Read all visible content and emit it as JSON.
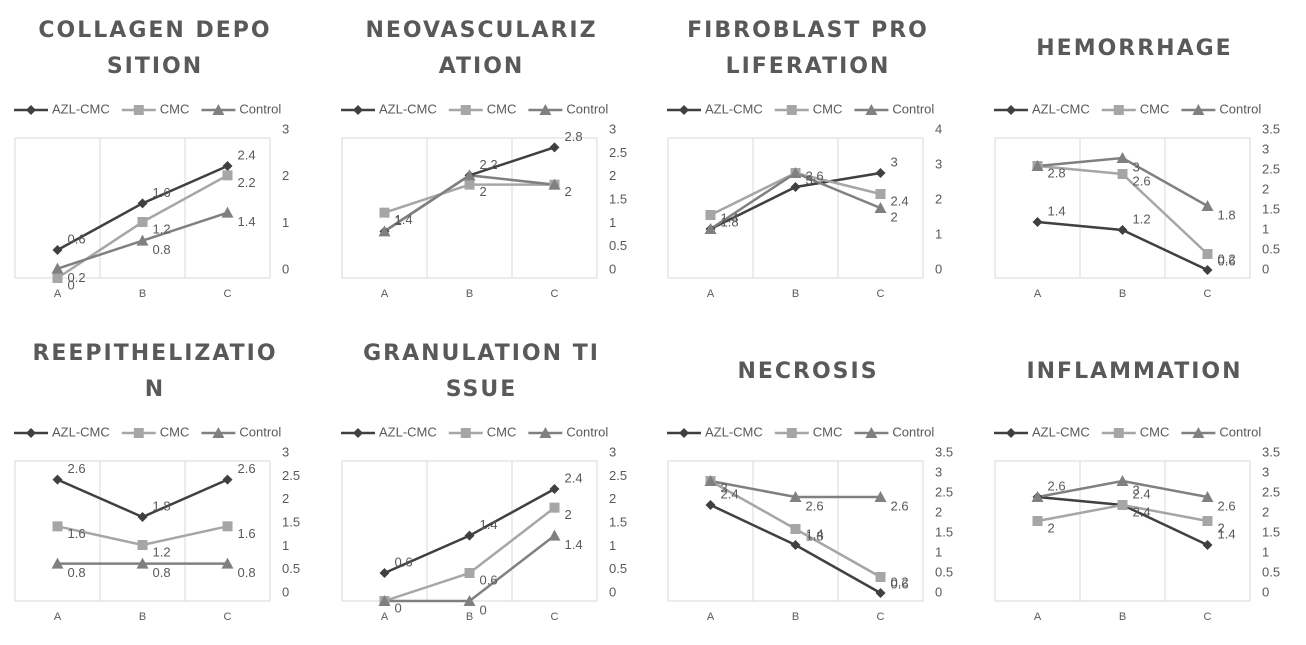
{
  "chart_data": [
    {
      "type": "line",
      "title": "COLLAGEN DEPOSITION",
      "categories": [
        "A",
        "B",
        "C"
      ],
      "ylim": [
        0,
        3
      ],
      "yticks": [
        0,
        1,
        2,
        3
      ],
      "series": [
        {
          "name": "AZL-CMC",
          "color": "#404040",
          "marker": "diamond",
          "values": [
            0.6,
            1.6,
            2.4
          ],
          "value_labels": [
            "0.6",
            "1.6",
            "2.4"
          ]
        },
        {
          "name": "CMC",
          "color": "#a6a6a6",
          "marker": "square",
          "values": [
            0,
            1.2,
            2.2
          ],
          "value_labels": [
            "0",
            "1.2",
            "2.2"
          ]
        },
        {
          "name": "Control",
          "color": "#808080",
          "marker": "triangle",
          "values": [
            0.2,
            0.8,
            1.4
          ],
          "value_labels": [
            "0.2",
            "0.8",
            "1.4"
          ]
        }
      ]
    },
    {
      "type": "line",
      "title": "NEOVASCULARIZATION",
      "categories": [
        "A",
        "B",
        "C"
      ],
      "ylim": [
        0,
        3
      ],
      "yticks": [
        0,
        0.5,
        1,
        1.5,
        2,
        2.5,
        3
      ],
      "series": [
        {
          "name": "AZL-CMC",
          "color": "#404040",
          "marker": "diamond",
          "values": [
            1,
            2.2,
            2.8
          ],
          "value_labels": [
            "1",
            "2.2",
            "2.8"
          ]
        },
        {
          "name": "CMC",
          "color": "#a6a6a6",
          "marker": "square",
          "values": [
            1.4,
            2,
            2
          ],
          "value_labels": [
            "1.4",
            "2",
            "2"
          ]
        },
        {
          "name": "Control",
          "color": "#808080",
          "marker": "triangle",
          "values": [
            1,
            2.2,
            2
          ],
          "value_labels": [
            null,
            null,
            null
          ]
        }
      ]
    },
    {
      "type": "line",
      "title": "FIBROBLAST PROLIFERATION",
      "categories": [
        "A",
        "B",
        "C"
      ],
      "ylim": [
        0,
        4
      ],
      "yticks": [
        0,
        1,
        2,
        3,
        4
      ],
      "series": [
        {
          "name": "AZL-CMC",
          "color": "#404040",
          "marker": "diamond",
          "values": [
            1.4,
            2.6,
            3
          ],
          "value_labels": [
            "1.4",
            "2.6",
            "3"
          ]
        },
        {
          "name": "CMC",
          "color": "#a6a6a6",
          "marker": "square",
          "values": [
            1.8,
            3,
            2.4
          ],
          "value_labels": [
            "1.8",
            "3",
            "2.4"
          ]
        },
        {
          "name": "Control",
          "color": "#808080",
          "marker": "triangle",
          "values": [
            1.4,
            3,
            2
          ],
          "value_labels": [
            null,
            null,
            "2"
          ]
        }
      ]
    },
    {
      "type": "line",
      "title": "HEMORRHAGE",
      "categories": [
        "A",
        "B",
        "C"
      ],
      "ylim": [
        0,
        3.5
      ],
      "yticks": [
        0,
        0.5,
        1,
        1.5,
        2,
        2.5,
        3,
        3.5
      ],
      "series": [
        {
          "name": "AZL-CMC",
          "color": "#404040",
          "marker": "diamond",
          "values": [
            1.4,
            1.2,
            0.2
          ],
          "value_labels": [
            "1.4",
            "1.2",
            "0.2"
          ]
        },
        {
          "name": "CMC",
          "color": "#a6a6a6",
          "marker": "square",
          "values": [
            2.8,
            2.6,
            0.6
          ],
          "value_labels": [
            "2.8",
            "2.6",
            "0.6"
          ]
        },
        {
          "name": "Control",
          "color": "#808080",
          "marker": "triangle",
          "values": [
            2.8,
            3,
            1.8
          ],
          "value_labels": [
            null,
            "3",
            "1.8"
          ]
        }
      ]
    },
    {
      "type": "line",
      "title": "REEPITHELIZATION",
      "categories": [
        "A",
        "B",
        "C"
      ],
      "ylim": [
        0,
        3
      ],
      "yticks": [
        0,
        0.5,
        1,
        1.5,
        2,
        2.5,
        3
      ],
      "series": [
        {
          "name": "AZL-CMC",
          "color": "#404040",
          "marker": "diamond",
          "values": [
            2.6,
            1.8,
            2.6
          ],
          "value_labels": [
            "2.6",
            "1.8",
            "2.6"
          ]
        },
        {
          "name": "CMC",
          "color": "#a6a6a6",
          "marker": "square",
          "values": [
            1.6,
            1.2,
            1.6
          ],
          "value_labels": [
            "1.6",
            "1.2",
            "1.6"
          ]
        },
        {
          "name": "Control",
          "color": "#808080",
          "marker": "triangle",
          "values": [
            0.8,
            0.8,
            0.8
          ],
          "value_labels": [
            "0.8",
            "0.8",
            "0.8"
          ]
        }
      ]
    },
    {
      "type": "line",
      "title": "GRANULATION TISSUE",
      "categories": [
        "A",
        "B",
        "C"
      ],
      "ylim": [
        0,
        3
      ],
      "yticks": [
        0,
        0.5,
        1,
        1.5,
        2,
        2.5,
        3
      ],
      "series": [
        {
          "name": "AZL-CMC",
          "color": "#404040",
          "marker": "diamond",
          "values": [
            0.6,
            1.4,
            2.4
          ],
          "value_labels": [
            "0.6",
            "1.4",
            "2.4"
          ]
        },
        {
          "name": "CMC",
          "color": "#a6a6a6",
          "marker": "square",
          "values": [
            0,
            0.6,
            2
          ],
          "value_labels": [
            "0",
            "0.6",
            "2"
          ]
        },
        {
          "name": "Control",
          "color": "#808080",
          "marker": "triangle",
          "values": [
            0,
            0,
            1.4
          ],
          "value_labels": [
            null,
            "0",
            "1.4"
          ]
        }
      ]
    },
    {
      "type": "line",
      "title": "NECROSIS",
      "categories": [
        "A",
        "B",
        "C"
      ],
      "ylim": [
        0,
        3.5
      ],
      "yticks": [
        0,
        0.5,
        1,
        1.5,
        2,
        2.5,
        3,
        3.5
      ],
      "series": [
        {
          "name": "AZL-CMC",
          "color": "#404040",
          "marker": "diamond",
          "values": [
            2.4,
            1.4,
            0.2
          ],
          "value_labels": [
            "2.4",
            "1.4",
            "0.2"
          ]
        },
        {
          "name": "CMC",
          "color": "#a6a6a6",
          "marker": "square",
          "values": [
            3,
            1.8,
            0.6
          ],
          "value_labels": [
            "3",
            "1.8",
            "0.6"
          ]
        },
        {
          "name": "Control",
          "color": "#808080",
          "marker": "triangle",
          "values": [
            3,
            2.6,
            2.6
          ],
          "value_labels": [
            null,
            "2.6",
            "2.6"
          ]
        }
      ]
    },
    {
      "type": "line",
      "title": "INFLAMMATION",
      "categories": [
        "A",
        "B",
        "C"
      ],
      "ylim": [
        0,
        3.5
      ],
      "yticks": [
        0,
        0.5,
        1,
        1.5,
        2,
        2.5,
        3,
        3.5
      ],
      "series": [
        {
          "name": "AZL-CMC",
          "color": "#404040",
          "marker": "diamond",
          "values": [
            2.6,
            2.4,
            1.4
          ],
          "value_labels": [
            "2.6",
            "2.4",
            "1.4"
          ]
        },
        {
          "name": "CMC",
          "color": "#a6a6a6",
          "marker": "square",
          "values": [
            2,
            2.4,
            2
          ],
          "value_labels": [
            "2",
            "2.4",
            "2"
          ]
        },
        {
          "name": "Control",
          "color": "#808080",
          "marker": "triangle",
          "values": [
            2.6,
            3,
            2.6
          ],
          "value_labels": [
            null,
            "3",
            "2.6"
          ]
        }
      ]
    }
  ]
}
